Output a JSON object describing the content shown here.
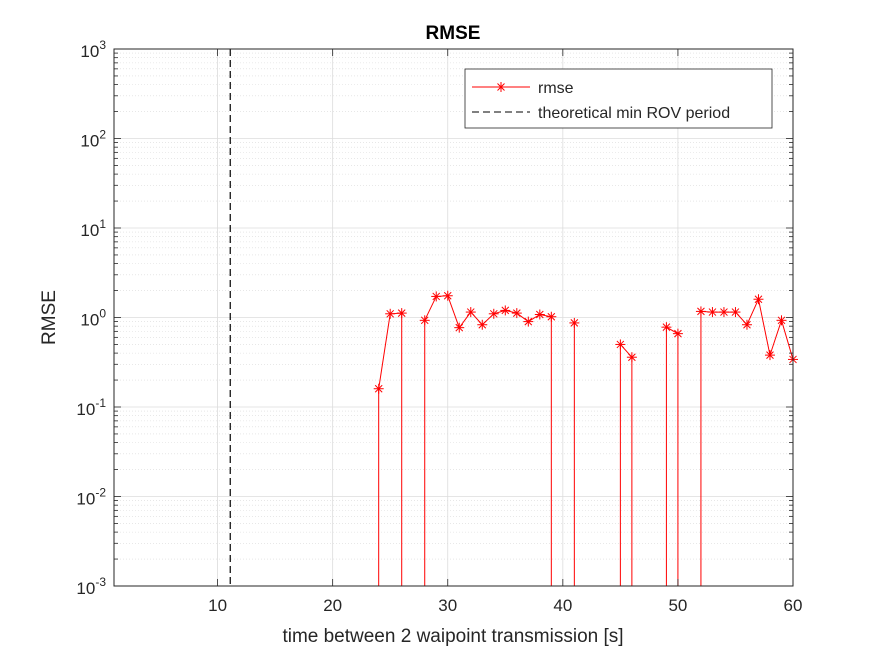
{
  "chart_data": {
    "type": "line",
    "title": "RMSE",
    "xlabel": "time between 2 waipoint transmission [s]",
    "ylabel": "RMSE",
    "xlim": [
      1,
      60
    ],
    "ylim": [
      0.001,
      1000
    ],
    "yscale": "log",
    "grid": "on",
    "minor_grid": "on",
    "legend_position": "top-right",
    "x_ticks": [
      {
        "value": 10,
        "label": "10"
      },
      {
        "value": 20,
        "label": "20"
      },
      {
        "value": 30,
        "label": "30"
      },
      {
        "value": 40,
        "label": "40"
      },
      {
        "value": 50,
        "label": "50"
      },
      {
        "value": 60,
        "label": "60"
      }
    ],
    "y_ticks": [
      {
        "value": 0.001,
        "base": "10",
        "exp": "-3"
      },
      {
        "value": 0.01,
        "base": "10",
        "exp": "-2"
      },
      {
        "value": 0.1,
        "base": "10",
        "exp": "-1"
      },
      {
        "value": 1,
        "base": "10",
        "exp": "0"
      },
      {
        "value": 10,
        "base": "10",
        "exp": "1"
      },
      {
        "value": 100,
        "base": "10",
        "exp": "2"
      },
      {
        "value": 1000,
        "base": "10",
        "exp": "3"
      }
    ],
    "series": [
      {
        "name": "rmse",
        "color": "#ff0000",
        "marker": "asterisk",
        "points": [
          {
            "x": 24,
            "y": 0.16
          },
          {
            "x": 25,
            "y": 1.1
          },
          {
            "x": 26,
            "y": 1.12
          },
          {
            "x": 28,
            "y": 0.93
          },
          {
            "x": 29,
            "y": 1.72
          },
          {
            "x": 30,
            "y": 1.75
          },
          {
            "x": 31,
            "y": 0.77
          },
          {
            "x": 32,
            "y": 1.15
          },
          {
            "x": 33,
            "y": 0.83
          },
          {
            "x": 34,
            "y": 1.1
          },
          {
            "x": 35,
            "y": 1.2
          },
          {
            "x": 36,
            "y": 1.12
          },
          {
            "x": 37,
            "y": 0.9
          },
          {
            "x": 38,
            "y": 1.08
          },
          {
            "x": 39,
            "y": 1.02
          },
          {
            "x": 41,
            "y": 0.87
          },
          {
            "x": 45,
            "y": 0.5
          },
          {
            "x": 46,
            "y": 0.36
          },
          {
            "x": 49,
            "y": 0.78
          },
          {
            "x": 50,
            "y": 0.66
          },
          {
            "x": 52,
            "y": 1.17
          },
          {
            "x": 53,
            "y": 1.15
          },
          {
            "x": 54,
            "y": 1.15
          },
          {
            "x": 55,
            "y": 1.15
          },
          {
            "x": 56,
            "y": 0.83
          },
          {
            "x": 57,
            "y": 1.6
          },
          {
            "x": 58,
            "y": 0.38
          },
          {
            "x": 59,
            "y": 0.93
          },
          {
            "x": 60,
            "y": 0.34
          }
        ],
        "segments": [
          [
            24,
            25,
            26
          ],
          [
            28,
            29,
            30,
            31,
            32,
            33,
            34,
            35,
            36,
            37,
            38,
            39
          ],
          [
            41
          ],
          [
            45,
            46
          ],
          [
            49,
            50
          ],
          [
            52,
            53,
            54,
            55,
            56,
            57,
            58,
            59,
            60
          ]
        ]
      },
      {
        "name": "theoretical min ROV period",
        "color": "#000000",
        "style": "dashed",
        "x": 11.1
      }
    ]
  }
}
